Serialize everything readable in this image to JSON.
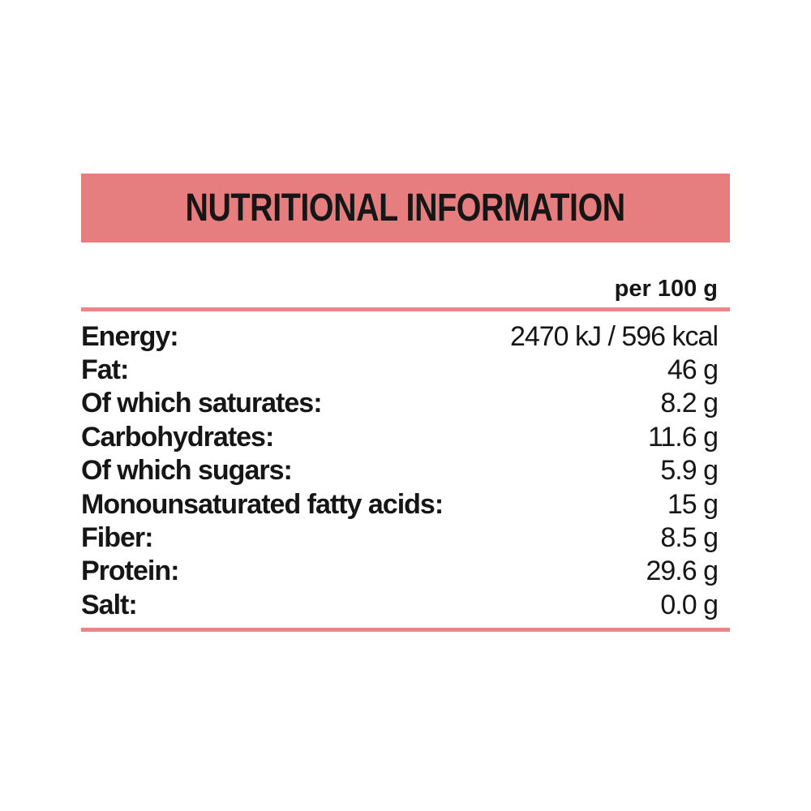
{
  "header": {
    "title": "NUTRITIONAL INFORMATION"
  },
  "table": {
    "column_header": "per 100 g",
    "rows": [
      {
        "label": "Energy:",
        "value": "2470 kJ / 596 kcal"
      },
      {
        "label": "Fat:",
        "value": "46 g"
      },
      {
        "label": "Of which saturates:",
        "value": "8.2 g"
      },
      {
        "label": "Carbohydrates:",
        "value": "11.6 g"
      },
      {
        "label": "Of which sugars:",
        "value": "5.9 g"
      },
      {
        "label": "Monounsaturated fatty acids:",
        "value": "15 g"
      },
      {
        "label": "Fiber:",
        "value": "8.5 g"
      },
      {
        "label": "Protein:",
        "value": "29.6 g"
      },
      {
        "label": "Salt:",
        "value": "0.0 g"
      }
    ]
  },
  "colors": {
    "accent": "#E67D7E",
    "rule": "#ED8485",
    "text": "#161616",
    "background": "#FFFFFF"
  }
}
